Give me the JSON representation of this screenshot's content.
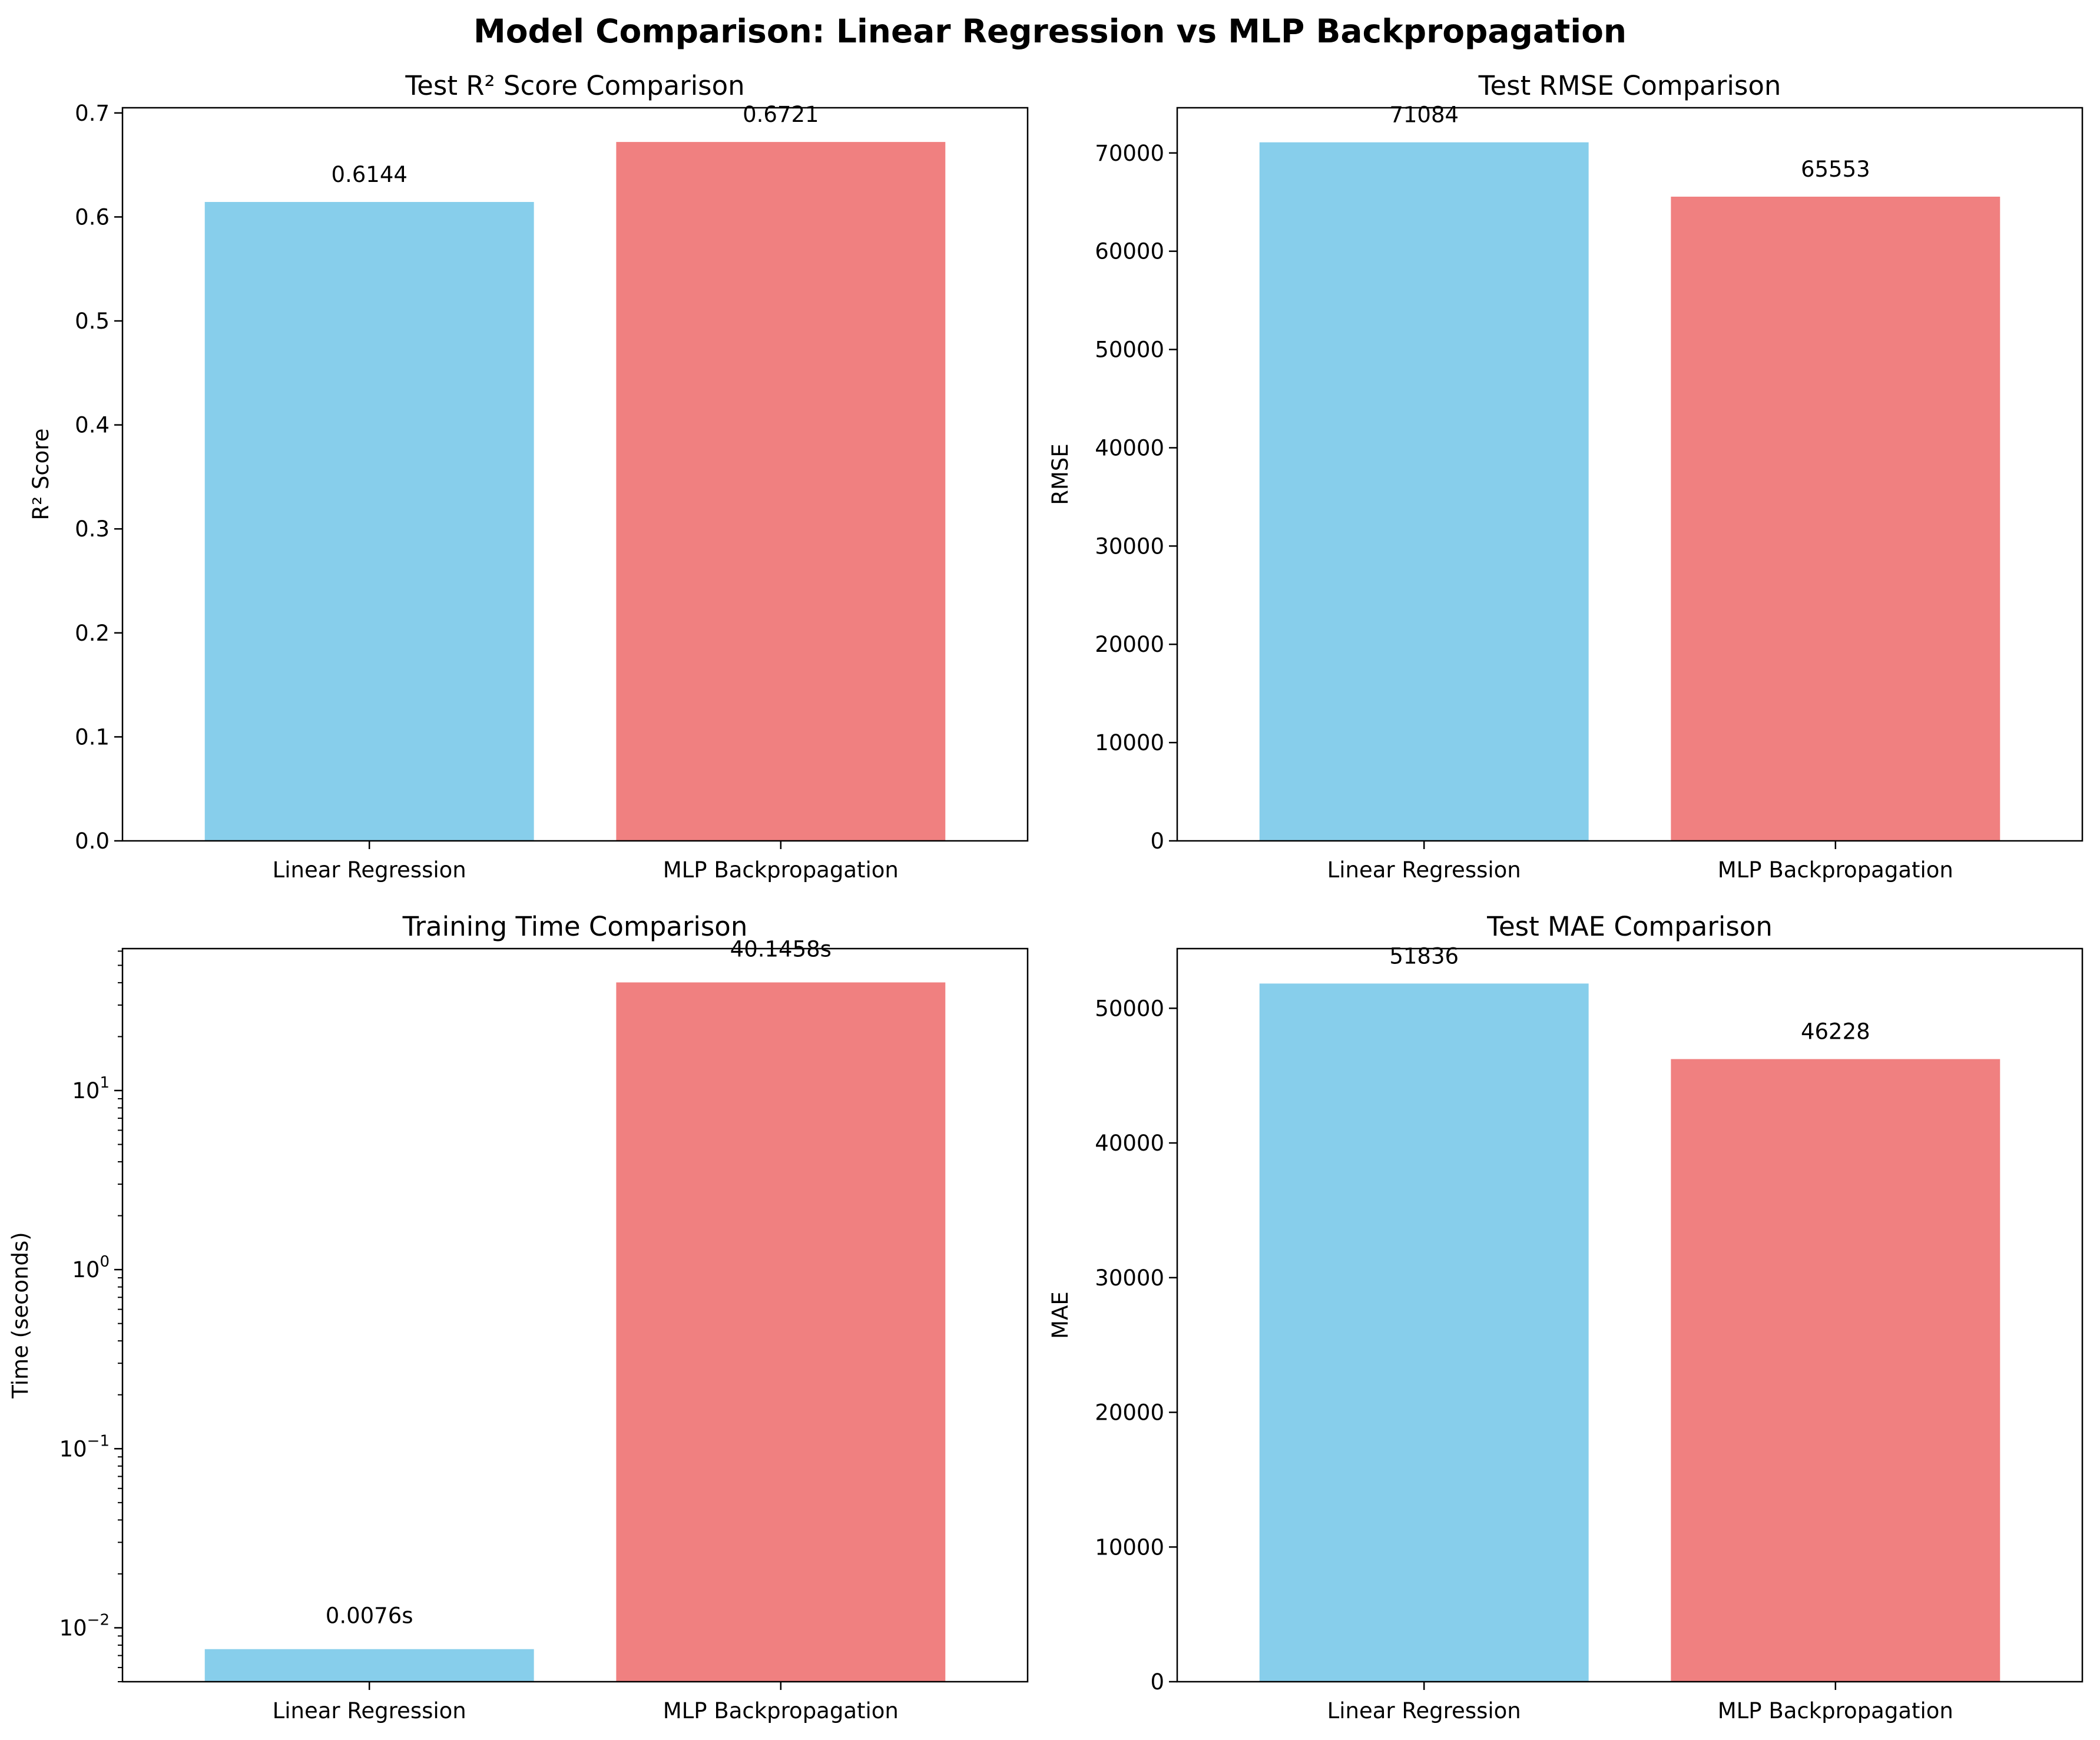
{
  "figure": {
    "title": "Model Comparison: Linear Regression vs MLP Backpropagation"
  },
  "colors": {
    "linear": "#87CEEB",
    "mlp": "#F08080",
    "axis": "#000000",
    "background": "#FFFFFF"
  },
  "chart_data": [
    {
      "type": "bar",
      "title": "Test R² Score Comparison",
      "xlabel": "",
      "ylabel": "R² Score",
      "categories": [
        "Linear Regression",
        "MLP Backpropagation"
      ],
      "values": [
        0.6144,
        0.6721
      ],
      "value_labels": [
        "0.6144",
        "0.6721"
      ],
      "colors": [
        "#87CEEB",
        "#F08080"
      ],
      "ylim": [
        0,
        0.705
      ],
      "scale": "linear",
      "yticks": [
        {
          "value": 0.0,
          "label": "0.0"
        },
        {
          "value": 0.1,
          "label": "0.1"
        },
        {
          "value": 0.2,
          "label": "0.2"
        },
        {
          "value": 0.3,
          "label": "0.3"
        },
        {
          "value": 0.4,
          "label": "0.4"
        },
        {
          "value": 0.5,
          "label": "0.5"
        },
        {
          "value": 0.6,
          "label": "0.6"
        },
        {
          "value": 0.7,
          "label": "0.7"
        }
      ],
      "grid": false,
      "legend": "none"
    },
    {
      "type": "bar",
      "title": "Test RMSE Comparison",
      "xlabel": "",
      "ylabel": "RMSE",
      "categories": [
        "Linear Regression",
        "MLP Backpropagation"
      ],
      "values": [
        71084,
        65553
      ],
      "value_labels": [
        "71084",
        "65553"
      ],
      "colors": [
        "#87CEEB",
        "#F08080"
      ],
      "ylim": [
        0,
        74600
      ],
      "scale": "linear",
      "yticks": [
        {
          "value": 0,
          "label": "0"
        },
        {
          "value": 10000,
          "label": "10000"
        },
        {
          "value": 20000,
          "label": "20000"
        },
        {
          "value": 30000,
          "label": "30000"
        },
        {
          "value": 40000,
          "label": "40000"
        },
        {
          "value": 50000,
          "label": "50000"
        },
        {
          "value": 60000,
          "label": "60000"
        },
        {
          "value": 70000,
          "label": "70000"
        }
      ],
      "grid": false,
      "legend": "none"
    },
    {
      "type": "bar",
      "title": "Training Time Comparison",
      "xlabel": "",
      "ylabel": "Time (seconds)",
      "categories": [
        "Linear Regression",
        "MLP Backpropagation"
      ],
      "values": [
        0.0076,
        40.1458
      ],
      "value_labels": [
        "0.0076s",
        "40.1458s"
      ],
      "colors": [
        "#87CEEB",
        "#F08080"
      ],
      "ylim": [
        0.005,
        62
      ],
      "scale": "log",
      "yticks": [
        {
          "value": 0.01,
          "base": "10",
          "exp": "−2"
        },
        {
          "value": 0.1,
          "base": "10",
          "exp": "−1"
        },
        {
          "value": 1,
          "base": "10",
          "exp": "0"
        },
        {
          "value": 10,
          "base": "10",
          "exp": "1"
        }
      ],
      "grid": false,
      "legend": "none"
    },
    {
      "type": "bar",
      "title": "Test MAE Comparison",
      "xlabel": "",
      "ylabel": "MAE",
      "categories": [
        "Linear Regression",
        "MLP Backpropagation"
      ],
      "values": [
        51836,
        46228
      ],
      "value_labels": [
        "51836",
        "46228"
      ],
      "colors": [
        "#87CEEB",
        "#F08080"
      ],
      "ylim": [
        0,
        54430
      ],
      "scale": "linear",
      "yticks": [
        {
          "value": 0,
          "label": "0"
        },
        {
          "value": 10000,
          "label": "10000"
        },
        {
          "value": 20000,
          "label": "20000"
        },
        {
          "value": 30000,
          "label": "30000"
        },
        {
          "value": 40000,
          "label": "40000"
        },
        {
          "value": 50000,
          "label": "50000"
        }
      ],
      "grid": false,
      "legend": "none"
    }
  ]
}
